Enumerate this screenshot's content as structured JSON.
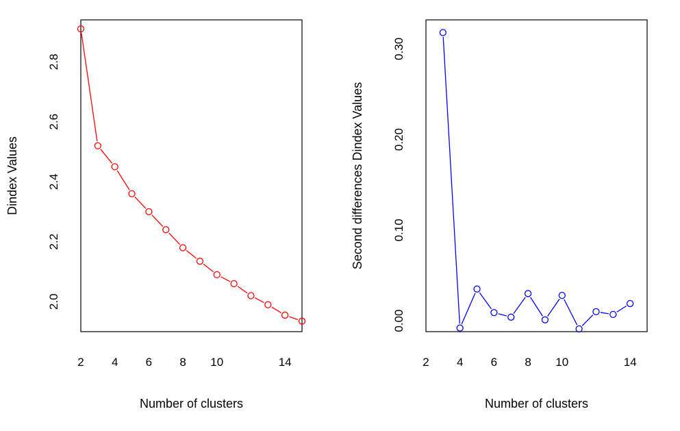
{
  "chart_data": [
    {
      "type": "line",
      "xlabel": "Number of clusters",
      "ylabel": "Dindex Values",
      "xlim": [
        2,
        15
      ],
      "ylim": [
        1.9,
        2.94
      ],
      "xticks": [
        2,
        4,
        6,
        8,
        10,
        14
      ],
      "yticks": [
        2.0,
        2.2,
        2.4,
        2.6,
        2.8
      ],
      "grid": false,
      "color": "#ff0000",
      "series": [
        {
          "x": [
            2,
            3,
            4,
            5,
            6,
            7,
            8,
            9,
            10,
            11,
            12,
            13,
            14,
            15
          ],
          "y": [
            2.91,
            2.52,
            2.45,
            2.36,
            2.3,
            2.24,
            2.18,
            2.135,
            2.09,
            2.06,
            2.02,
            1.99,
            1.955,
            1.935
          ]
        }
      ]
    },
    {
      "type": "line",
      "xlabel": "Number of clusters",
      "ylabel": "Second differences Dindex Values",
      "xlim": [
        2,
        15
      ],
      "ylim": [
        -0.012,
        0.332
      ],
      "xticks": [
        2,
        4,
        6,
        8,
        10,
        14
      ],
      "yticks": [
        0.0,
        0.1,
        0.2,
        0.3
      ],
      "yticklabels": [
        "0.00",
        "0.10",
        "0.20",
        "0.30"
      ],
      "grid": false,
      "color": "#0000ff",
      "series": [
        {
          "x": [
            3,
            4,
            5,
            6,
            7,
            8,
            9,
            10,
            11,
            12,
            13,
            14
          ],
          "y": [
            0.318,
            -0.008,
            0.035,
            0.009,
            0.004,
            0.03,
            0.001,
            0.028,
            -0.009,
            0.01,
            0.007,
            0.019
          ]
        }
      ]
    }
  ]
}
